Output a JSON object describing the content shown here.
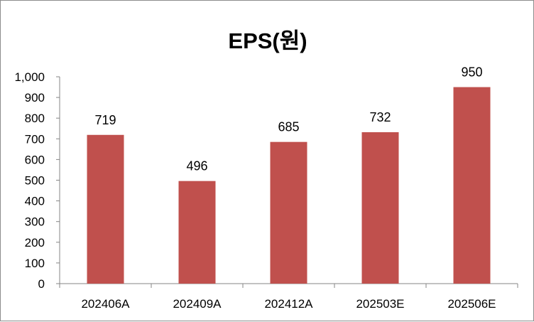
{
  "chart_data": {
    "type": "bar",
    "title": "EPS(원)",
    "categories": [
      "202406A",
      "202409A",
      "202412A",
      "202503E",
      "202506E"
    ],
    "values": [
      719,
      496,
      685,
      732,
      950
    ],
    "data_labels": [
      "719",
      "496",
      "685",
      "732",
      "950"
    ],
    "ylim": [
      0,
      1000
    ],
    "yticks": [
      0,
      100,
      200,
      300,
      400,
      500,
      600,
      700,
      800,
      900,
      1000
    ],
    "ytick_labels": [
      "0",
      "100",
      "200",
      "300",
      "400",
      "500",
      "600",
      "700",
      "800",
      "900",
      "1,000"
    ],
    "grid": false,
    "legend": "none",
    "bar_color": "#c0504d"
  }
}
